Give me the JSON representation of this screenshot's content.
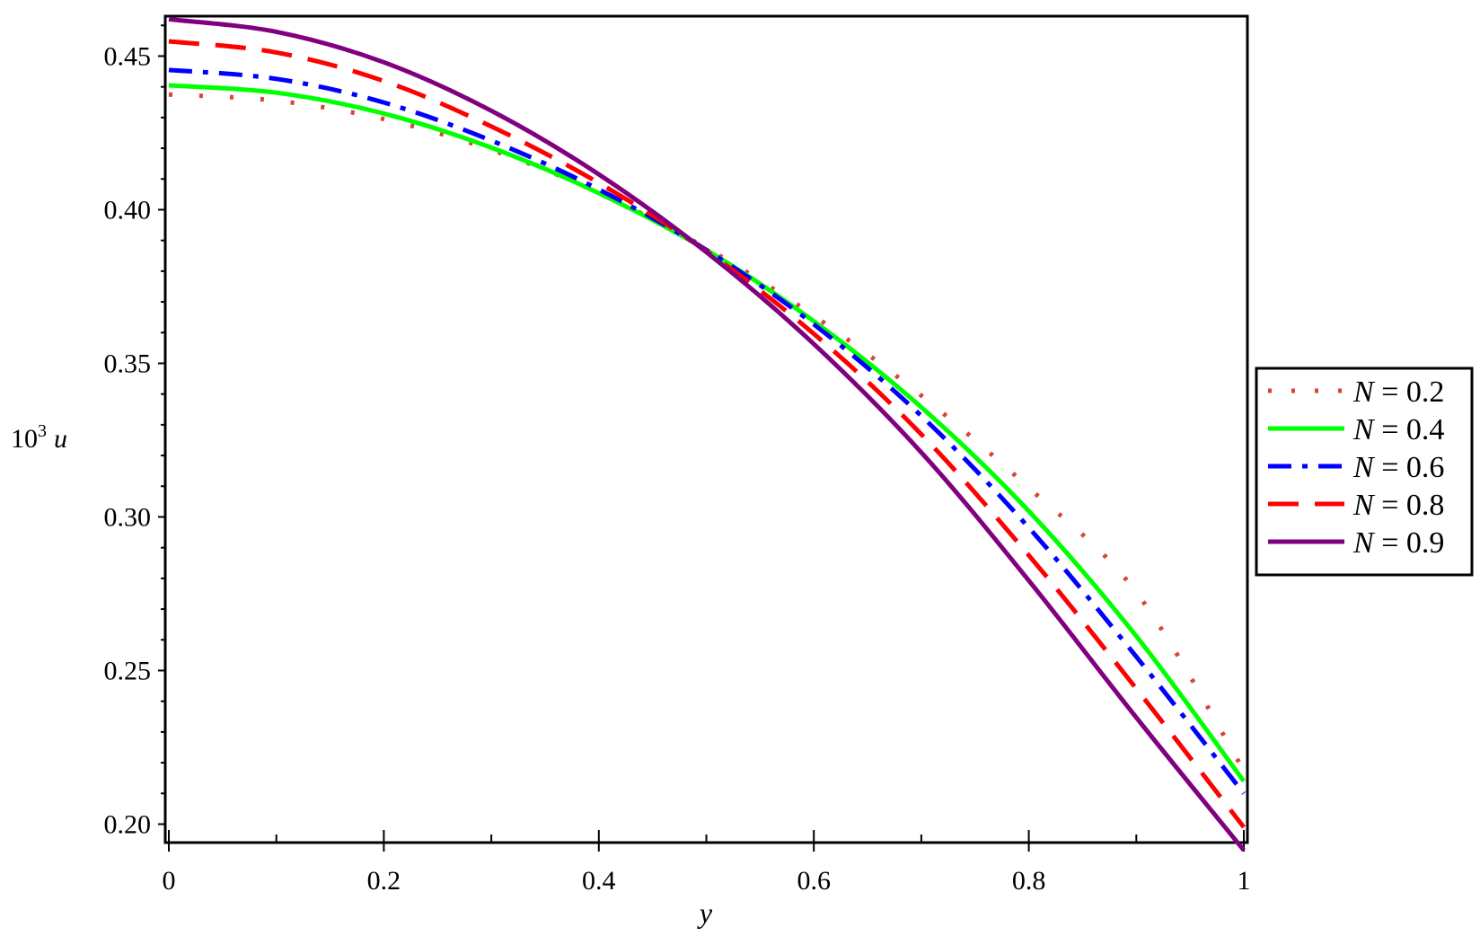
{
  "chart_data": {
    "type": "line",
    "title": "",
    "xlabel": "y",
    "ylabel": {
      "base": "10",
      "exponent": "3",
      "symbol": "u"
    },
    "xlim": [
      0,
      1
    ],
    "ylim": [
      0.194,
      0.463
    ],
    "xticks": [
      "0",
      "0.2",
      "0.4",
      "0.6",
      "0.8",
      "1"
    ],
    "yticks": [
      "0.20",
      "0.25",
      "0.30",
      "0.35",
      "0.40",
      "0.45"
    ],
    "grid": false,
    "legend_position": "right",
    "series": [
      {
        "name": "N = 0.2",
        "legend_var": "N",
        "legend_val": "0.2",
        "color": "#d9433a",
        "dash": "dotted",
        "x": [
          0,
          0.1,
          0.2,
          0.3,
          0.4,
          0.5,
          0.6,
          0.7,
          0.8,
          0.9,
          1.0
        ],
        "y": [
          0.4375,
          0.4355,
          0.4295,
          0.4195,
          0.4055,
          0.3875,
          0.3655,
          0.3395,
          0.3095,
          0.2755,
          0.2175
        ]
      },
      {
        "name": "N = 0.4",
        "legend_var": "N",
        "legend_val": "0.4",
        "color": "#00ff00",
        "dash": "solid",
        "x": [
          0,
          0.1,
          0.2,
          0.3,
          0.4,
          0.5,
          0.6,
          0.7,
          0.8,
          0.9,
          1.0
        ],
        "y": [
          0.4405,
          0.4381,
          0.4313,
          0.4202,
          0.4054,
          0.3869,
          0.3637,
          0.3357,
          0.3019,
          0.2612,
          0.214
        ]
      },
      {
        "name": "N = 0.6",
        "legend_var": "N",
        "legend_val": "0.6",
        "color": "#0000ff",
        "dash": "dashdot",
        "x": [
          0,
          0.1,
          0.2,
          0.3,
          0.4,
          0.5,
          0.6,
          0.7,
          0.8,
          0.9,
          1.0
        ],
        "y": [
          0.4455,
          0.4426,
          0.4349,
          0.4225,
          0.4066,
          0.3869,
          0.3627,
          0.3329,
          0.2965,
          0.2545,
          0.21
        ]
      },
      {
        "name": "N = 0.8",
        "legend_var": "N",
        "legend_val": "0.8",
        "color": "#ff0000",
        "dash": "longdash",
        "x": [
          0,
          0.1,
          0.2,
          0.3,
          0.4,
          0.5,
          0.6,
          0.7,
          0.8,
          0.9,
          1.0
        ],
        "y": [
          0.4548,
          0.4512,
          0.4419,
          0.4271,
          0.4087,
          0.3865,
          0.3596,
          0.3269,
          0.2875,
          0.2441,
          0.199
        ]
      },
      {
        "name": "N = 0.9",
        "legend_var": "N",
        "legend_val": "0.9",
        "color": "#800080",
        "dash": "solid",
        "x": [
          0,
          0.1,
          0.2,
          0.3,
          0.4,
          0.5,
          0.6,
          0.7,
          0.8,
          0.9,
          1.0
        ],
        "y": [
          0.462,
          0.4579,
          0.448,
          0.4322,
          0.4115,
          0.3862,
          0.3563,
          0.321,
          0.2793,
          0.2347,
          0.1915
        ]
      }
    ]
  }
}
